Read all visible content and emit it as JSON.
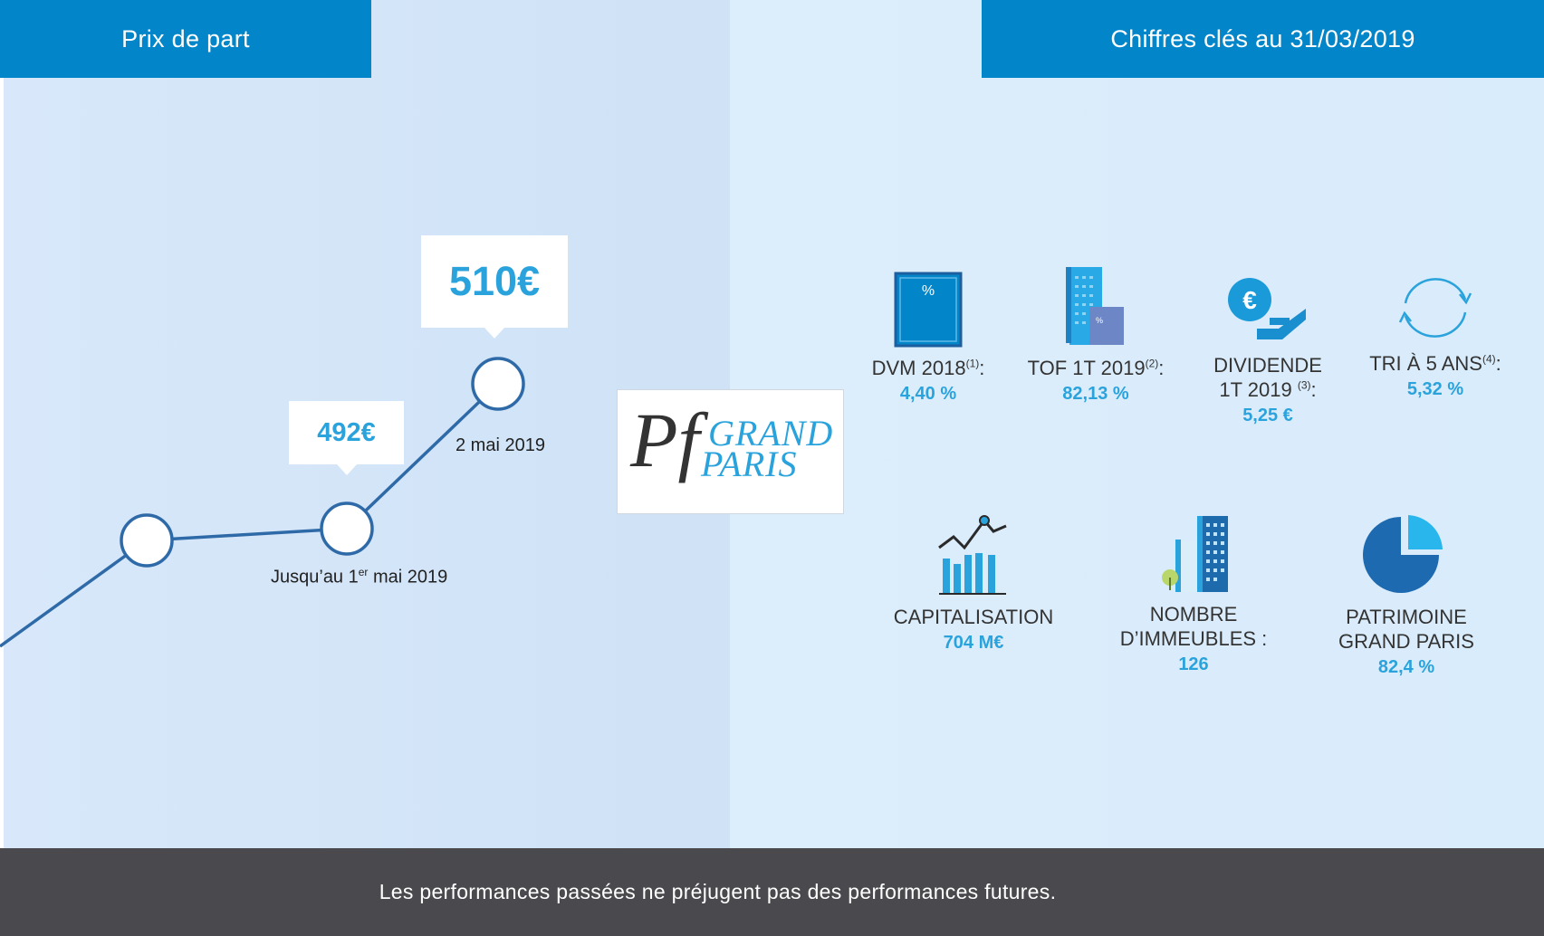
{
  "header": {
    "left_title": "Prix de part",
    "right_title": "Chiffres clés au 31/03/2019"
  },
  "price_chart": {
    "current_price": "510€",
    "previous_price": "492€",
    "current_date_label": "2 mai 2019",
    "previous_date_label_pre": "Jusqu’au 1",
    "previous_date_label_sup": "er",
    "previous_date_label_post": " mai 2019"
  },
  "logo": {
    "monogram": "Pf",
    "line1": "GRAND",
    "line2": "PARIS"
  },
  "kpis": {
    "dvm": {
      "label": "DVM 2018",
      "note": "(1)",
      "suffix": ":",
      "value": "4,40 %",
      "icon": "percent-box-icon"
    },
    "tof": {
      "label": "TOF 1T 2019",
      "note": "(2)",
      "suffix": ":",
      "value": "82,13 %",
      "icon": "building-percent-icon"
    },
    "dividende": {
      "label_line1": "DIVIDENDE",
      "label_line2": "1T 2019",
      "note": "(3)",
      "suffix": ":",
      "value": "5,25 €",
      "icon": "euro-hand-icon"
    },
    "tri": {
      "label": "TRI À 5 ANS",
      "note": "(4)",
      "suffix": ":",
      "value": "5,32 %",
      "icon": "cycle-arrows-icon"
    },
    "capitalisation": {
      "label": "CAPITALISATION",
      "value": "704 M€",
      "icon": "bar-chart-icon"
    },
    "immeubles": {
      "label_line1": "NOMBRE",
      "label_line2": "D’IMMEUBLES :",
      "value": "126",
      "icon": "buildings-icon"
    },
    "patrimoine": {
      "label_line1": "PATRIMOINE",
      "label_line2": "GRAND PARIS",
      "value": "82,4 %",
      "icon": "pie-chart-icon"
    }
  },
  "colors": {
    "header_blue": "#0286c9",
    "accent_blue": "#2aa3dd",
    "line_blue": "#2f6aa8",
    "footer_gray": "#4a4a4e"
  },
  "footer": {
    "disclaimer": "Les performances passées ne préjugent pas des performances futures."
  }
}
